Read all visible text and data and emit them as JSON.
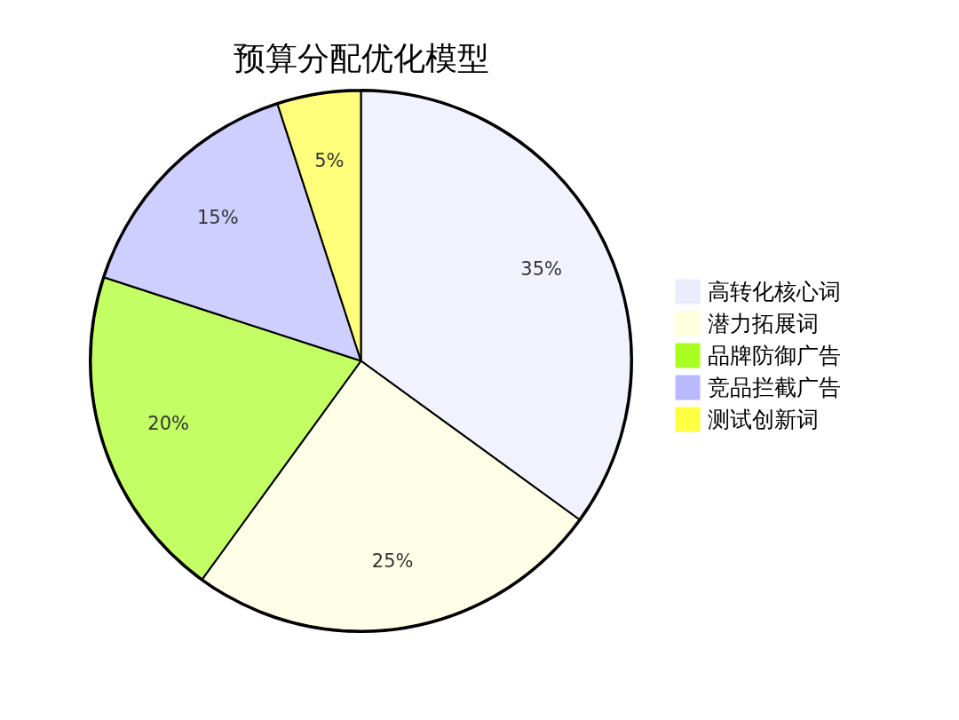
{
  "chart_data": {
    "type": "pie",
    "title": "预算分配优化模型",
    "categories": [
      "高转化核心词",
      "潜力拓展词",
      "品牌防御广告",
      "竞品拦截广告",
      "测试创新词"
    ],
    "values": [
      35,
      25,
      20,
      15,
      5
    ],
    "value_labels": [
      "35%",
      "25%",
      "20%",
      "15%",
      "5%"
    ],
    "colors": [
      "#ececff",
      "#ffffde",
      "#aaff22",
      "#b9b9ff",
      "#ffff44"
    ],
    "legend": "right"
  }
}
